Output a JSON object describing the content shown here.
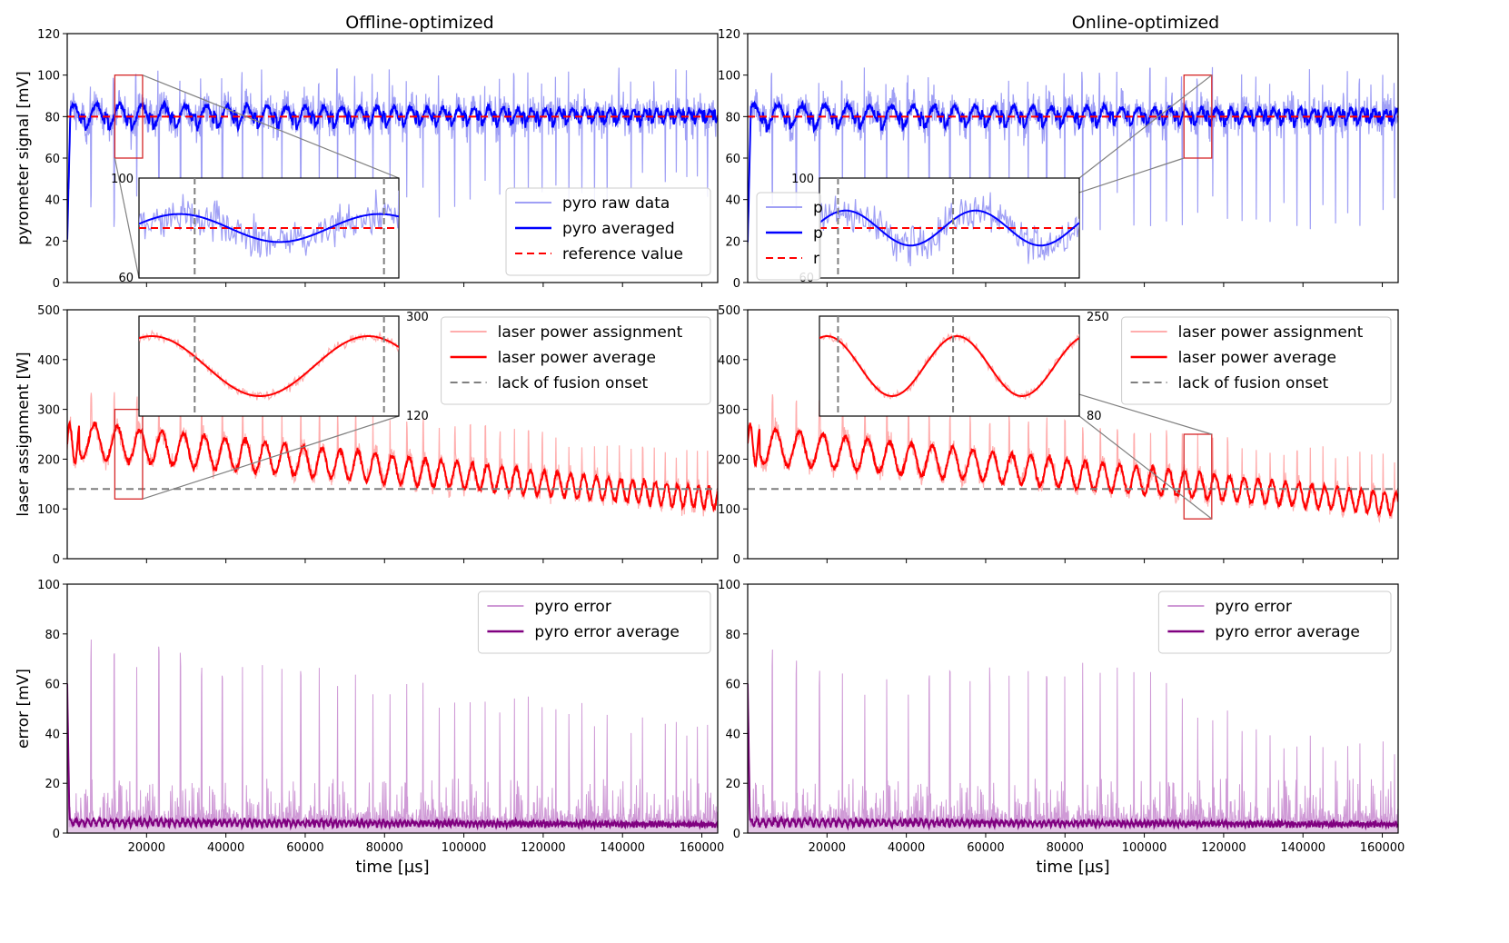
{
  "columns": [
    {
      "title": "Offline-optimized"
    },
    {
      "title": "Online-optimized"
    }
  ],
  "colors": {
    "pyro_raw": "#9f9ff5",
    "pyro_avg": "#0000ff",
    "reference": "#ff0000",
    "laser_raw": "#ffadad",
    "laser_avg": "#ff0000",
    "onset": "#7f7f7f",
    "err_raw": "#cf9ad6",
    "err_avg": "#800080",
    "zoom_box": "#d62728",
    "connector": "#808080"
  },
  "chart_data": [
    {
      "id": "pyro-offline",
      "type": "line",
      "column": 0,
      "row": 0,
      "ylabel": "pyrometer signal [mV]",
      "xlabel": "",
      "xlim": [
        0,
        164000
      ],
      "ylim": [
        0,
        120
      ],
      "xticks": [
        20000,
        40000,
        60000,
        80000,
        100000,
        120000,
        140000,
        160000
      ],
      "yticks": [
        0,
        20,
        40,
        60,
        80,
        100,
        120
      ],
      "series": [
        {
          "name": "pyro raw data",
          "kind": "pyro_raw"
        },
        {
          "name": "pyro averaged",
          "kind": "pyro_avg"
        },
        {
          "name": "reference value",
          "kind": "reference",
          "value": 80
        }
      ],
      "legend": [
        "pyro raw data",
        "pyro averaged",
        "reference value"
      ],
      "legend_position": "lower-right",
      "inset": {
        "x_range": [
          12000,
          19000
        ],
        "ylim": [
          60,
          100
        ],
        "yticks": [
          60,
          100
        ],
        "onsets": [
          13500,
          18600
        ],
        "position": "bottom-left"
      }
    },
    {
      "id": "pyro-online",
      "type": "line",
      "column": 1,
      "row": 0,
      "ylabel": "",
      "xlabel": "",
      "xlim": [
        0,
        164000
      ],
      "ylim": [
        0,
        120
      ],
      "xticks": [
        20000,
        40000,
        60000,
        80000,
        100000,
        120000,
        140000,
        160000
      ],
      "yticks": [
        0,
        20,
        40,
        60,
        80,
        100,
        120
      ],
      "series": [
        {
          "name": "pyro raw data",
          "kind": "pyro_raw"
        },
        {
          "name": "pyro averaged",
          "kind": "pyro_avg"
        },
        {
          "name": "reference value",
          "kind": "reference",
          "value": 80
        }
      ],
      "legend": [
        "p",
        "p",
        "r"
      ],
      "legend_position": "lower-left",
      "inset": {
        "x_range": [
          110000,
          117000
        ],
        "ylim": [
          60,
          100
        ],
        "yticks": [
          60,
          100
        ],
        "onsets": [
          110500,
          113600
        ],
        "position": "bottom-center"
      }
    },
    {
      "id": "laser-offline",
      "type": "line",
      "column": 0,
      "row": 1,
      "ylabel": "laser assignment [W]",
      "xlabel": "",
      "xlim": [
        0,
        164000
      ],
      "ylim": [
        0,
        500
      ],
      "xticks": [
        20000,
        40000,
        60000,
        80000,
        100000,
        120000,
        140000,
        160000
      ],
      "yticks": [
        0,
        100,
        200,
        300,
        400,
        500
      ],
      "series": [
        {
          "name": "laser power assignment",
          "kind": "laser_raw"
        },
        {
          "name": "laser power average",
          "kind": "laser_avg"
        },
        {
          "name": "lack of fusion onset",
          "kind": "onset",
          "value": 140
        }
      ],
      "legend": [
        "laser power assignment",
        "laser power average",
        "lack of fusion onset"
      ],
      "legend_position": "upper-right",
      "inset": {
        "x_range": [
          12000,
          19000
        ],
        "ylim": [
          120,
          300
        ],
        "yticks": [
          120,
          300
        ],
        "onsets": [
          13500,
          18600
        ],
        "position": "top-left"
      }
    },
    {
      "id": "laser-online",
      "type": "line",
      "column": 1,
      "row": 1,
      "ylabel": "",
      "xlabel": "",
      "xlim": [
        0,
        164000
      ],
      "ylim": [
        0,
        500
      ],
      "xticks": [
        20000,
        40000,
        60000,
        80000,
        100000,
        120000,
        140000,
        160000
      ],
      "yticks": [
        0,
        100,
        200,
        300,
        400,
        500
      ],
      "series": [
        {
          "name": "laser power assignment",
          "kind": "laser_raw"
        },
        {
          "name": "laser power average",
          "kind": "laser_avg"
        },
        {
          "name": "lack of fusion onset",
          "kind": "onset",
          "value": 140
        }
      ],
      "legend": [
        "laser power assignment",
        "laser power average",
        "lack of fusion onset"
      ],
      "legend_position": "upper-right",
      "inset": {
        "x_range": [
          110000,
          117000
        ],
        "ylim": [
          80,
          250
        ],
        "yticks": [
          80,
          250
        ],
        "onsets": [
          110500,
          113600
        ],
        "position": "top-left"
      }
    },
    {
      "id": "error-offline",
      "type": "line",
      "column": 0,
      "row": 2,
      "ylabel": "error [mV]",
      "xlabel": "time [µs]",
      "xlim": [
        0,
        164000
      ],
      "ylim": [
        0,
        100
      ],
      "xticks": [
        20000,
        40000,
        60000,
        80000,
        100000,
        120000,
        140000,
        160000
      ],
      "yticks": [
        0,
        20,
        40,
        60,
        80,
        100
      ],
      "series": [
        {
          "name": "pyro error",
          "kind": "err_raw"
        },
        {
          "name": "pyro error average",
          "kind": "err_avg"
        }
      ],
      "legend": [
        "pyro error",
        "pyro error average"
      ],
      "legend_position": "upper-right"
    },
    {
      "id": "error-online",
      "type": "line",
      "column": 1,
      "row": 2,
      "ylabel": "",
      "xlabel": "time [µs]",
      "xlim": [
        0,
        164000
      ],
      "ylim": [
        0,
        100
      ],
      "xticks": [
        20000,
        40000,
        60000,
        80000,
        100000,
        120000,
        140000,
        160000
      ],
      "yticks": [
        0,
        20,
        40,
        60,
        80,
        100
      ],
      "series": [
        {
          "name": "pyro error",
          "kind": "err_raw"
        },
        {
          "name": "pyro error average",
          "kind": "err_avg"
        }
      ],
      "legend": [
        "pyro error",
        "pyro error average"
      ],
      "legend_position": "upper-right"
    }
  ]
}
